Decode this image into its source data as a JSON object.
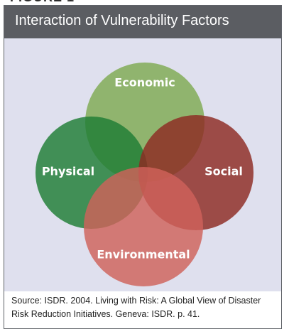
{
  "figure": {
    "title": "Interaction of Vulnerability Factors",
    "circles": [
      {
        "key": "economic",
        "label": "Economic",
        "color": "#7faa52"
      },
      {
        "key": "physical",
        "label": "Physical",
        "color": "#1e7c34"
      },
      {
        "key": "social",
        "label": "Social",
        "color": "#8e2a22"
      },
      {
        "key": "environmental",
        "label": "Environmental",
        "color": "#d0625a"
      }
    ],
    "source": "Source: ISDR. 2004. Living with Risk: A Global View of Disaster Risk Reduction Initiatives. Geneva: ISDR. p. 41."
  },
  "colors": {
    "title_bar": "#5b5d62",
    "panel_background": "#dfe0ee",
    "border": "#5f6268"
  }
}
